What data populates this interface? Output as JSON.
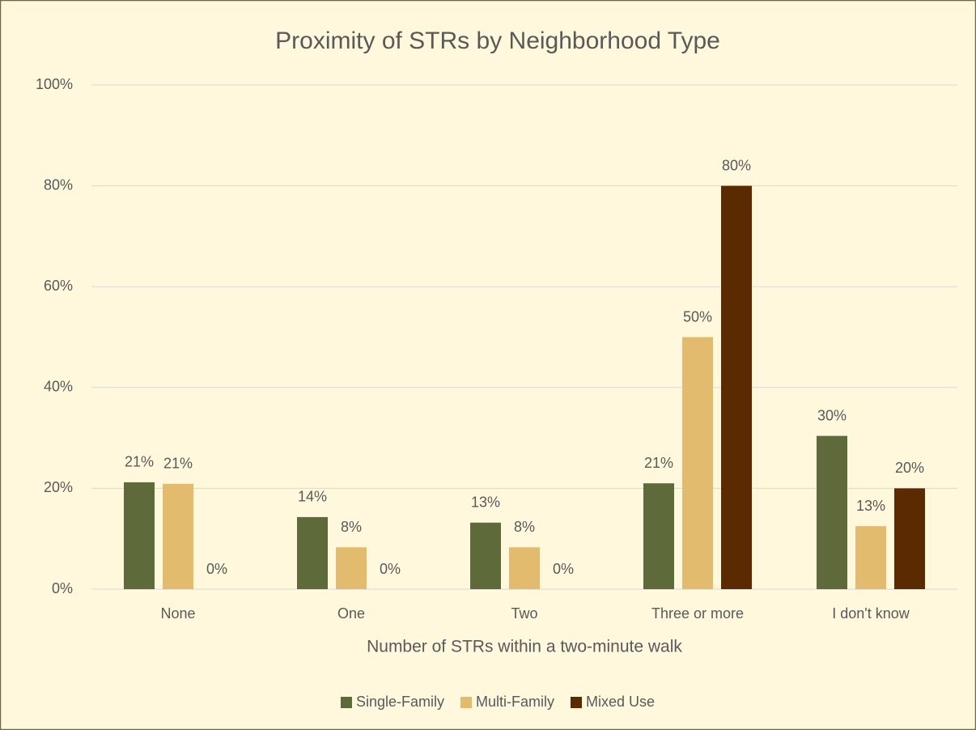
{
  "chart_data": {
    "type": "bar",
    "title": "Proximity of STRs by Neighborhood Type",
    "x_label": "Number of STRs within a two-minute walk",
    "categories": [
      "None",
      "One",
      "Two",
      "Three or more",
      "I don't know"
    ],
    "series": [
      {
        "name": "Single-Family",
        "color": "#5f6a3b",
        "values": [
          21.2,
          14.3,
          13.2,
          21,
          30.4
        ],
        "value_labels": [
          "21%",
          "14%",
          "13%",
          "21%",
          "30%"
        ]
      },
      {
        "name": "Multi-Family",
        "color": "#e2bb6e",
        "values": [
          20.9,
          8.3,
          8.3,
          50,
          12.5
        ],
        "value_labels": [
          "21%",
          "8%",
          "8%",
          "50%",
          "13%"
        ]
      },
      {
        "name": "Mixed Use",
        "color": "#5b2a00",
        "values": [
          0,
          0,
          0,
          80,
          20
        ],
        "value_labels": [
          "0%",
          "0%",
          "0%",
          "80%",
          "20%"
        ]
      }
    ],
    "ylim": [
      0,
      100
    ],
    "yticks": [
      {
        "value": 0,
        "label": "0%"
      },
      {
        "value": 20,
        "label": "20%"
      },
      {
        "value": 40,
        "label": "40%"
      },
      {
        "value": 60,
        "label": "60%"
      },
      {
        "value": 80,
        "label": "80%"
      },
      {
        "value": 100,
        "label": "100%"
      }
    ],
    "grid": true,
    "legend": "bottom"
  }
}
